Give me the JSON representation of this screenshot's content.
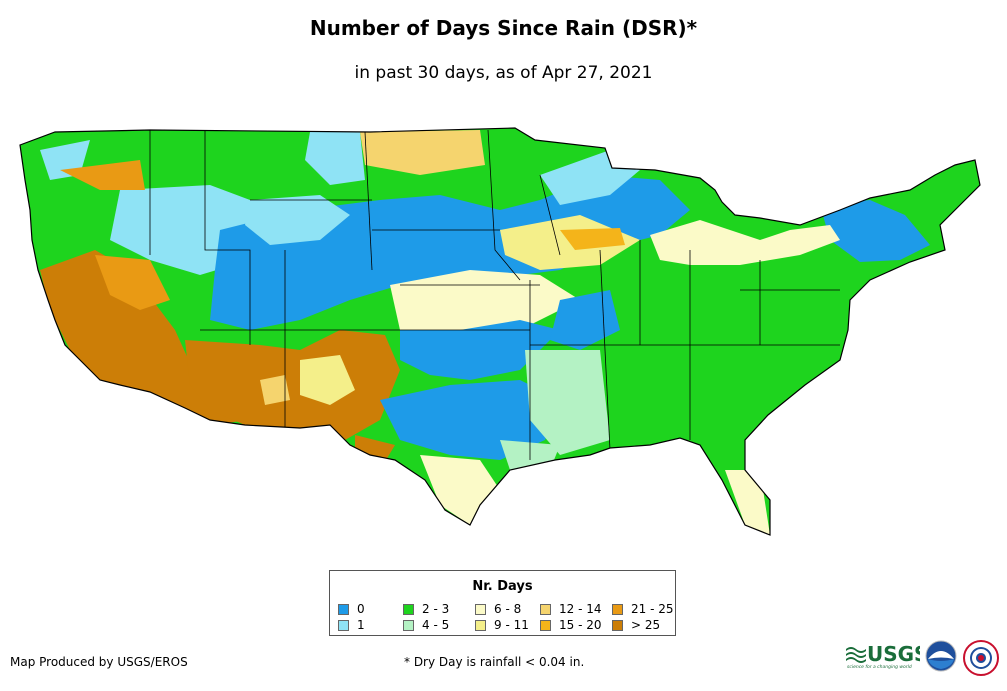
{
  "title": "Number of Days Since Rain (DSR)*",
  "subtitle": "in past 30 days, as of Apr 27, 2021",
  "legend": {
    "title": "Nr. Days",
    "items": [
      {
        "label": "0",
        "color": "#1e9be8"
      },
      {
        "label": "1",
        "color": "#8fe3f5"
      },
      {
        "label": "2 - 3",
        "color": "#1ed41e"
      },
      {
        "label": "4 - 5",
        "color": "#b4f2c4"
      },
      {
        "label": "6 - 8",
        "color": "#fbfac8"
      },
      {
        "label": "9 - 11",
        "color": "#f4ef8a"
      },
      {
        "label": "12 - 14",
        "color": "#f5d46e"
      },
      {
        "label": "15 - 20",
        "color": "#f4b41a"
      },
      {
        "label": "21 - 25",
        "color": "#e99a14"
      },
      {
        "label": "> 25",
        "color": "#cc7e07"
      }
    ]
  },
  "footer": {
    "credit": "Map Produced by USGS/EROS",
    "note": "* Dry Day is rainfall < 0.04 in."
  },
  "logos": {
    "usgs_text": "USGS",
    "usgs_tagline": "science for a changing world"
  }
}
